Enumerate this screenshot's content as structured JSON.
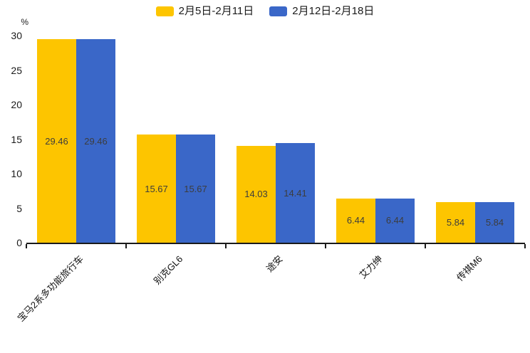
{
  "chart_data": {
    "type": "bar",
    "title": "",
    "categories": [
      "宝马2系多功能旅行车",
      "别克GL6",
      "途安",
      "艾力绅",
      "传祺M6"
    ],
    "series": [
      {
        "name": "2月5日-2月11日",
        "color": "#FDC500",
        "values": [
          29.46,
          15.67,
          14.03,
          6.44,
          5.84
        ]
      },
      {
        "name": "2月12日-2月18日",
        "color": "#3A67C8",
        "values": [
          29.46,
          15.67,
          14.41,
          6.44,
          5.84
        ]
      }
    ],
    "value_labels": [
      "29.46",
      "15.67",
      "14.03",
      "14.41",
      "6.44",
      "5.84"
    ],
    "xlabel": "",
    "ylabel": "%",
    "ylim": [
      0,
      30
    ],
    "yticks": [
      0,
      5,
      10,
      15,
      20,
      25,
      30
    ],
    "grid": false,
    "legend_position": "top",
    "bar_label_position": "inside-center"
  },
  "colors": {
    "series1": "#FDC500",
    "series2": "#3A67C8",
    "axis": "#1a1a1a",
    "bar_label_text": "#3d3d3d",
    "background": "#ffffff"
  }
}
